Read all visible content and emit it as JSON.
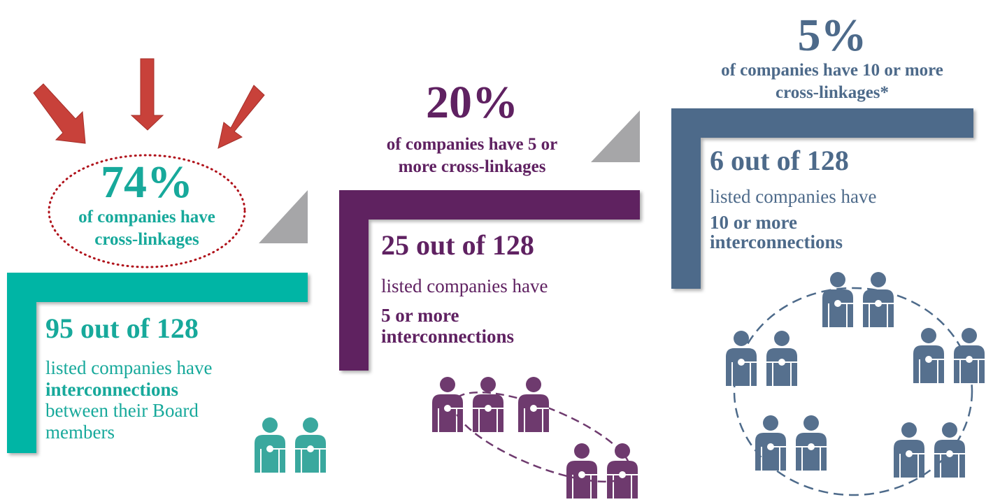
{
  "panels": [
    {
      "stat": "74%",
      "stat_lines": [
        "of companies have",
        "cross-linkages"
      ],
      "count": "95 out of 128",
      "desc_lines": [
        "listed companies have",
        "interconnections",
        "between their Board",
        "members"
      ]
    },
    {
      "stat": "20%",
      "stat_lines": [
        "of companies have 5 or",
        "more cross-linkages"
      ],
      "count": "25 out of 128",
      "desc_lines": [
        "listed companies have",
        "5 or more",
        "interconnections"
      ]
    },
    {
      "stat": "5%",
      "stat_lines": [
        "of companies have 10 or more",
        "cross-linkages*"
      ],
      "count": "6 out of 128",
      "desc_lines": [
        "listed companies have",
        "10 or more",
        "interconnections"
      ]
    }
  ]
}
